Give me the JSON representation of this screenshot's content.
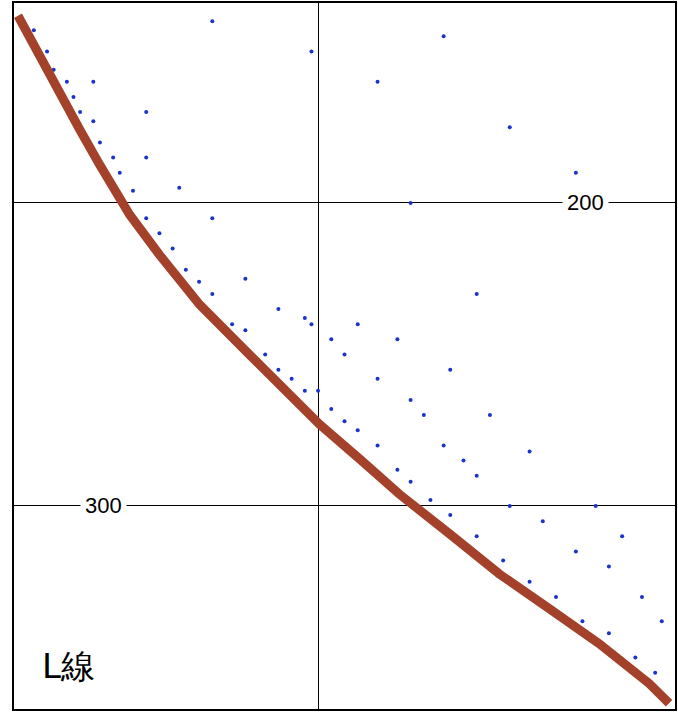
{
  "chart_data": {
    "type": "scatter",
    "annotation": "L線",
    "xlim": [
      0,
      100
    ],
    "xticks": [
      46
    ],
    "ylim": [
      367,
      134
    ],
    "yticks": [
      200,
      300
    ],
    "tick_labels": "y",
    "grid": true,
    "series": [
      {
        "type": "line",
        "color": "#a3412a",
        "line_style": "solid",
        "x": [
          0.6,
          5.4,
          10.0,
          13.0,
          17.5,
          22.0,
          28.1,
          35.6,
          43.2,
          46.2,
          52.3,
          58.3,
          65.9,
          73.4,
          81.0,
          88.5,
          96.1,
          99.1
        ],
        "values": [
          138.2,
          157.9,
          176.0,
          187.5,
          203.9,
          217.1,
          233.6,
          250.0,
          266.4,
          273.0,
          284.5,
          296.1,
          309.2,
          322.4,
          333.9,
          345.4,
          358.6,
          365.1
        ]
      },
      {
        "type": "scatter",
        "color": "#1a33c8",
        "marker": "circle",
        "x": [
          3,
          5,
          6,
          8,
          9,
          10,
          12,
          13,
          15,
          16,
          18,
          20,
          22,
          24,
          26,
          28,
          30,
          33,
          35,
          38,
          40,
          42,
          44,
          46,
          48,
          50,
          52,
          55,
          58,
          60,
          63,
          66,
          70,
          74,
          78,
          82,
          86,
          90,
          94,
          97,
          12,
          20,
          25,
          30,
          35,
          40,
          45,
          48,
          50,
          55,
          60,
          62,
          65,
          68,
          70,
          75,
          80,
          85,
          90,
          95,
          98,
          44,
          52,
          58,
          66,
          72,
          78,
          88,
          92,
          30,
          45,
          55,
          65,
          75,
          85,
          20,
          60,
          70
        ],
        "values": [
          143,
          150,
          156,
          160,
          165,
          170,
          173,
          180,
          185,
          190,
          196,
          205,
          210,
          215,
          222,
          226,
          230,
          240,
          242,
          250,
          255,
          258,
          262,
          262,
          268,
          272,
          275,
          280,
          288,
          292,
          298,
          303,
          310,
          318,
          325,
          330,
          338,
          342,
          350,
          355,
          160,
          185,
          195,
          205,
          225,
          235,
          240,
          245,
          250,
          258,
          265,
          270,
          280,
          285,
          290,
          300,
          305,
          315,
          320,
          330,
          338,
          238,
          240,
          245,
          255,
          270,
          282,
          300,
          310,
          140,
          150,
          160,
          145,
          175,
          190,
          170,
          200,
          230
        ]
      }
    ]
  }
}
